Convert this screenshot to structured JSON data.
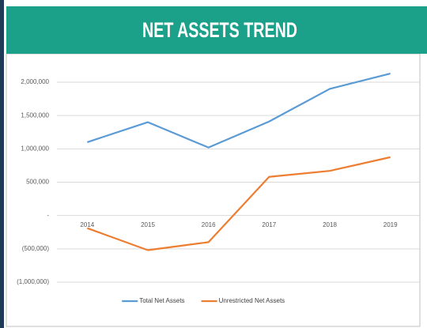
{
  "chart_data": {
    "type": "line",
    "title": "NET ASSETS TREND",
    "categories": [
      "2014",
      "2015",
      "2016",
      "2017",
      "2018",
      "2019"
    ],
    "series": [
      {
        "name": "Total Net Assets",
        "color": "#5b9bd5",
        "values": [
          1100000,
          1400000,
          1020000,
          1410000,
          1900000,
          2130000
        ]
      },
      {
        "name": "Unrestricted Net Assets",
        "color": "#ed7d31",
        "values": [
          -190000,
          -520000,
          -400000,
          580000,
          670000,
          875000
        ]
      }
    ],
    "ylim": [
      -1000000,
      2000000
    ],
    "yticks": [
      {
        "value": -1000000,
        "label": "(1,000,000)"
      },
      {
        "value": -500000,
        "label": "(500,000)"
      },
      {
        "value": 0,
        "label": "-"
      },
      {
        "value": 500000,
        "label": "500,000"
      },
      {
        "value": 1000000,
        "label": "1,000,000"
      },
      {
        "value": 1500000,
        "label": "1,500,000"
      },
      {
        "value": 2000000,
        "label": "2,000,000"
      }
    ],
    "grid": true,
    "legend": "bottom"
  }
}
